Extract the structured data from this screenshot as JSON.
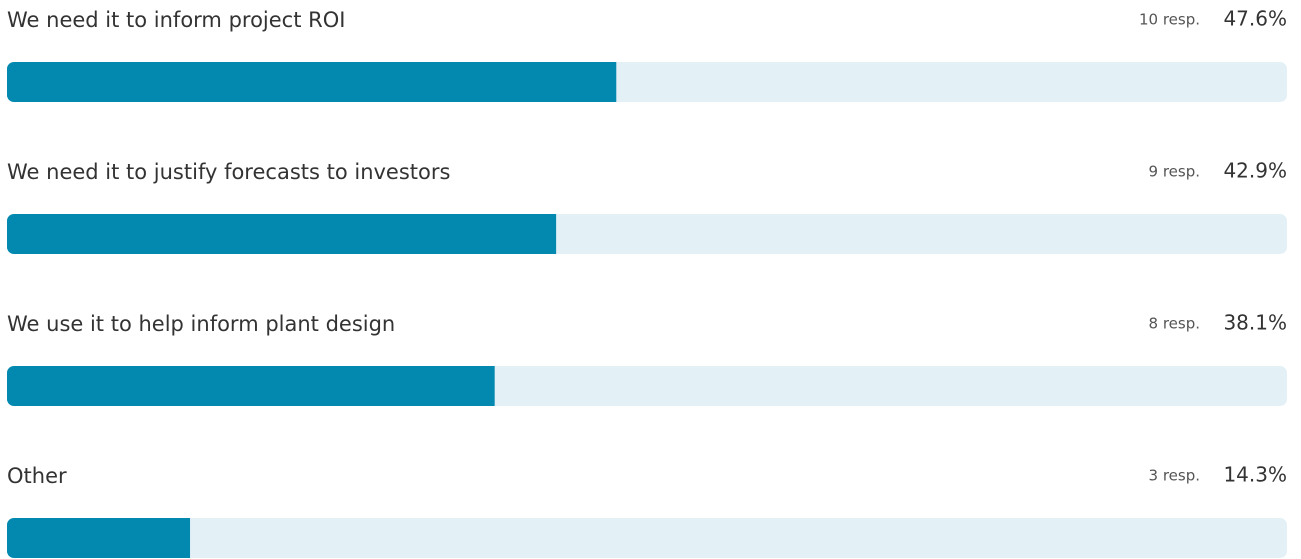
{
  "chart_data": {
    "type": "hbar",
    "categories": [
      "We need it to inform project ROI",
      "We need it to justify forecasts to investors",
      "We use it to help inform plant design",
      "Other"
    ],
    "values": [
      47.6,
      42.9,
      38.1,
      14.3
    ],
    "value_labels": [
      "47.6%",
      "42.9%",
      "38.1%",
      "14.3%"
    ],
    "response_labels": [
      "10 resp.",
      "9 resp.",
      "8 resp.",
      "3 resp."
    ],
    "xlim": [
      0,
      100
    ],
    "color": "#0388b0",
    "track_color": "#e3f1f7"
  }
}
